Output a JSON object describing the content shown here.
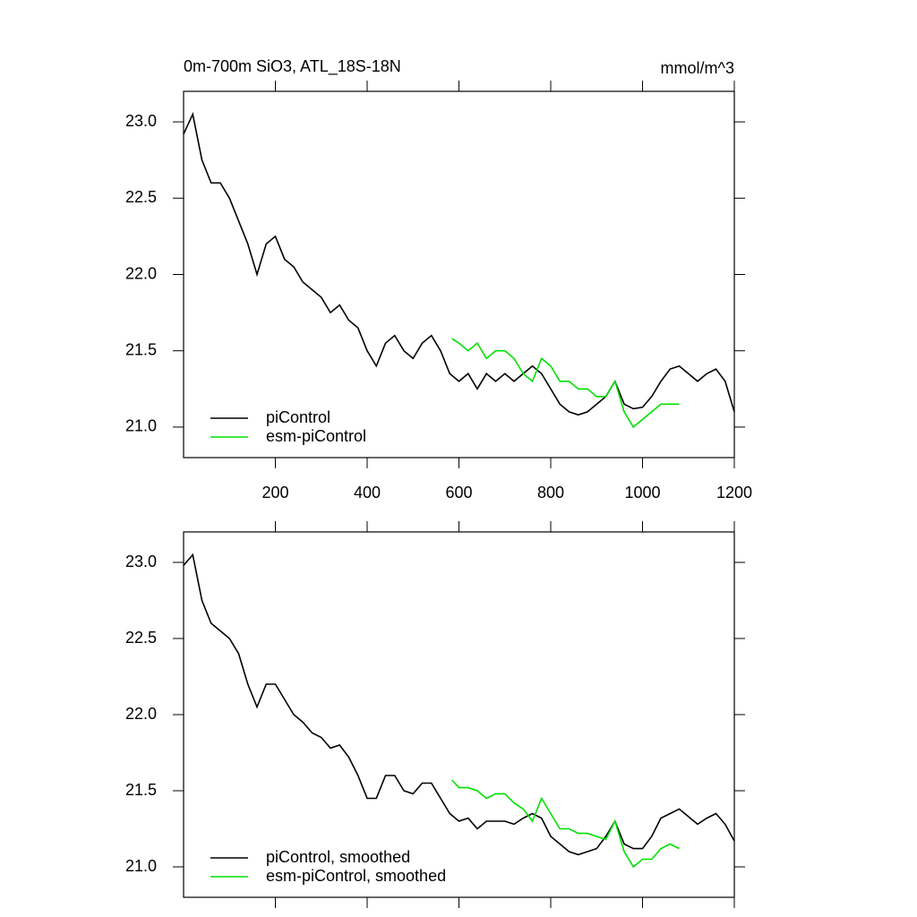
{
  "chart_data": [
    {
      "type": "line",
      "title": "0m-700m SiO3, ATL_18S-18N",
      "units": "mmol/m^3",
      "xlim": [
        0,
        1200
      ],
      "xticks": [
        200,
        400,
        600,
        800,
        1000,
        1200
      ],
      "show_xtick_labels": true,
      "ylim": [
        20.8,
        23.2
      ],
      "yticks": [
        {
          "value": 21,
          "label": "21.0"
        },
        21.5,
        {
          "value": 22,
          "label": "22.0"
        },
        22.5,
        {
          "value": 23,
          "label": "23.0"
        }
      ],
      "legend": "lower left",
      "series": [
        {
          "name": "piControl",
          "color": "#000000",
          "x": [
            0,
            20,
            40,
            60,
            80,
            100,
            120,
            140,
            160,
            180,
            200,
            220,
            240,
            260,
            280,
            300,
            320,
            340,
            360,
            380,
            400,
            420,
            440,
            460,
            480,
            500,
            520,
            540,
            560,
            580,
            600,
            620,
            640,
            660,
            680,
            700,
            720,
            740,
            760,
            780,
            800,
            820,
            840,
            860,
            880,
            900,
            920,
            940,
            960,
            980,
            1000,
            1020,
            1040,
            1060,
            1080,
            1100,
            1120,
            1140,
            1160,
            1180,
            1200
          ],
          "values": [
            22.92,
            23.05,
            22.75,
            22.6,
            22.6,
            22.5,
            22.35,
            22.2,
            22.0,
            22.2,
            22.25,
            22.1,
            22.05,
            21.95,
            21.9,
            21.85,
            21.75,
            21.8,
            21.7,
            21.65,
            21.5,
            21.4,
            21.55,
            21.6,
            21.5,
            21.45,
            21.55,
            21.6,
            21.5,
            21.35,
            21.3,
            21.35,
            21.25,
            21.35,
            21.3,
            21.35,
            21.3,
            21.35,
            21.4,
            21.35,
            21.25,
            21.15,
            21.1,
            21.08,
            21.1,
            21.15,
            21.2,
            21.3,
            21.15,
            21.12,
            21.13,
            21.2,
            21.3,
            21.38,
            21.4,
            21.35,
            21.3,
            21.35,
            21.38,
            21.3,
            21.1
          ]
        },
        {
          "name": "esm-piControl",
          "color": "#00e000",
          "x": [
            585,
            600,
            620,
            640,
            660,
            680,
            700,
            720,
            740,
            760,
            780,
            800,
            820,
            840,
            860,
            880,
            900,
            920,
            940,
            960,
            980,
            1000,
            1020,
            1040,
            1060,
            1080
          ],
          "values": [
            21.58,
            21.55,
            21.5,
            21.55,
            21.45,
            21.5,
            21.5,
            21.45,
            21.35,
            21.3,
            21.45,
            21.4,
            21.3,
            21.3,
            21.25,
            21.25,
            21.2,
            21.2,
            21.3,
            21.1,
            21.0,
            21.05,
            21.1,
            21.15,
            21.15,
            21.15
          ]
        }
      ]
    },
    {
      "type": "line",
      "xlim": [
        0,
        1200
      ],
      "xticks": [
        200,
        400,
        600,
        800,
        1000,
        1200
      ],
      "show_xtick_labels": false,
      "ylim": [
        20.8,
        23.2
      ],
      "yticks": [
        {
          "value": 21,
          "label": "21.0"
        },
        21.5,
        {
          "value": 22,
          "label": "22.0"
        },
        22.5,
        {
          "value": 23,
          "label": "23.0"
        }
      ],
      "legend": "lower left",
      "series": [
        {
          "name": "piControl, smoothed",
          "color": "#000000",
          "x": [
            0,
            20,
            40,
            60,
            80,
            100,
            120,
            140,
            160,
            180,
            200,
            220,
            240,
            260,
            280,
            300,
            320,
            340,
            360,
            380,
            400,
            420,
            440,
            460,
            480,
            500,
            520,
            540,
            560,
            580,
            600,
            620,
            640,
            660,
            680,
            700,
            720,
            740,
            760,
            780,
            800,
            820,
            840,
            860,
            880,
            900,
            920,
            940,
            960,
            980,
            1000,
            1020,
            1040,
            1060,
            1080,
            1100,
            1120,
            1140,
            1160,
            1180,
            1200
          ],
          "values": [
            22.98,
            23.05,
            22.75,
            22.6,
            22.55,
            22.5,
            22.4,
            22.2,
            22.05,
            22.2,
            22.2,
            22.1,
            22.0,
            21.95,
            21.88,
            21.85,
            21.78,
            21.8,
            21.72,
            21.6,
            21.45,
            21.45,
            21.6,
            21.6,
            21.5,
            21.48,
            21.55,
            21.55,
            21.45,
            21.35,
            21.3,
            21.32,
            21.25,
            21.3,
            21.3,
            21.3,
            21.28,
            21.32,
            21.35,
            21.32,
            21.2,
            21.15,
            21.1,
            21.08,
            21.1,
            21.12,
            21.2,
            21.3,
            21.15,
            21.12,
            21.12,
            21.2,
            21.32,
            21.35,
            21.38,
            21.33,
            21.28,
            21.32,
            21.35,
            21.28,
            21.17
          ]
        },
        {
          "name": "esm-piControl, smoothed",
          "color": "#00e000",
          "x": [
            585,
            600,
            620,
            640,
            660,
            680,
            700,
            720,
            740,
            760,
            780,
            800,
            820,
            840,
            860,
            880,
            900,
            920,
            940,
            960,
            980,
            1000,
            1020,
            1040,
            1060,
            1080
          ],
          "values": [
            21.57,
            21.52,
            21.52,
            21.5,
            21.45,
            21.48,
            21.48,
            21.42,
            21.38,
            21.3,
            21.45,
            21.35,
            21.25,
            21.25,
            21.22,
            21.22,
            21.2,
            21.18,
            21.3,
            21.1,
            21.0,
            21.05,
            21.05,
            21.12,
            21.15,
            21.12
          ]
        }
      ]
    }
  ]
}
